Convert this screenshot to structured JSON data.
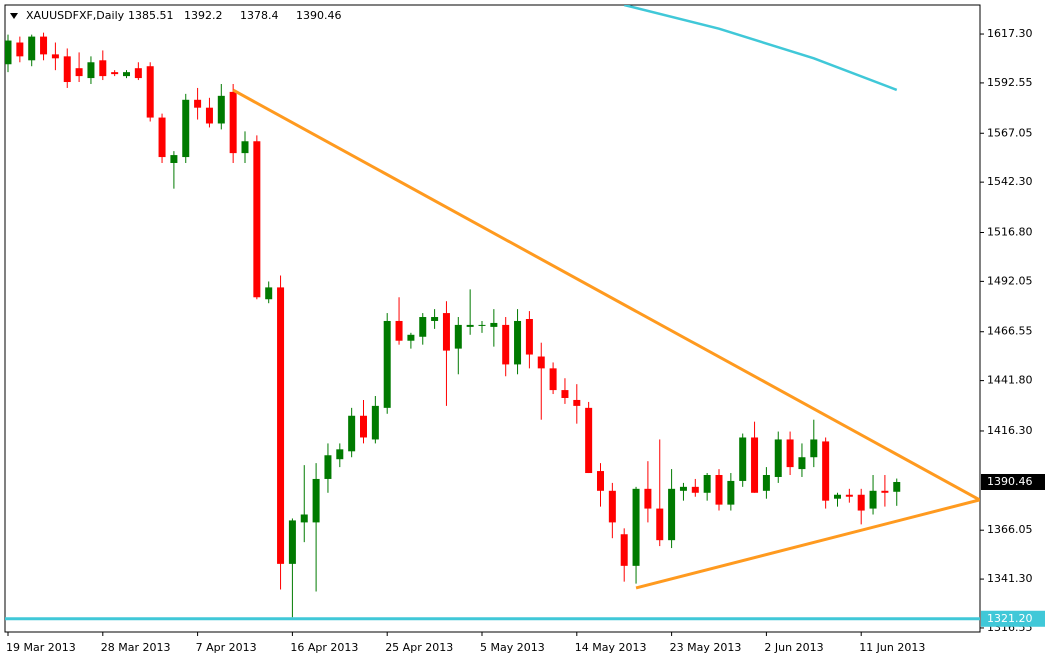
{
  "chart_data": {
    "type": "candlestick",
    "symbol": "XAUUSDFXF,Daily",
    "categories": [
      "19 Mar 2013",
      null,
      null,
      null,
      null,
      null,
      null,
      null,
      "28 Mar 2013",
      null,
      null,
      null,
      null,
      null,
      null,
      null,
      "7 Apr 2013",
      null,
      null,
      null,
      null,
      null,
      null,
      null,
      "16 Apr 2013",
      null,
      null,
      null,
      null,
      null,
      null,
      null,
      "25 Apr 2013",
      null,
      null,
      null,
      null,
      null,
      null,
      null,
      "5 May 2013",
      null,
      null,
      null,
      null,
      null,
      null,
      null,
      "14 May 2013",
      null,
      null,
      null,
      null,
      null,
      null,
      null,
      "23 May 2013",
      null,
      null,
      null,
      null,
      null,
      null,
      null,
      "2 Jun 2013",
      null,
      null,
      null,
      null,
      null,
      null,
      null,
      "11 Jun 2013",
      null,
      null,
      null
    ],
    "open": [
      1602,
      1613,
      1604,
      1616,
      1607,
      1606,
      1600,
      1595,
      1604,
      1598,
      1596,
      1600,
      1601,
      1575,
      1552,
      1555,
      1584,
      1580,
      1572,
      1588,
      1557,
      1563,
      1483,
      1489,
      1349,
      1370,
      1370,
      1392,
      1402,
      1406,
      1424,
      1412,
      1428,
      1472,
      1462,
      1464,
      1472,
      1476,
      1458,
      1469,
      1470,
      1469,
      1470,
      1450,
      1473,
      1454,
      1448,
      1437,
      1432,
      1428,
      1396,
      1386,
      1364,
      1348,
      1387,
      1377,
      1361,
      1386,
      1388,
      1385,
      1394,
      1379,
      1391,
      1413,
      1386,
      1393,
      1412,
      1397,
      1403,
      1411,
      1382,
      1384,
      1384,
      1377,
      1386,
      1385.51
    ],
    "high": [
      1617,
      1616,
      1617,
      1618,
      1613,
      1610,
      1608,
      1606,
      1609,
      1599,
      1599,
      1603,
      1603,
      1577,
      1558,
      1587,
      1590,
      1585,
      1592,
      1592,
      1568,
      1566,
      1492,
      1495,
      1372,
      1399,
      1400,
      1410,
      1410,
      1428,
      1432,
      1434,
      1476,
      1484,
      1466,
      1476,
      1478,
      1482,
      1474,
      1488,
      1472,
      1478,
      1474,
      1478,
      1477,
      1461,
      1451,
      1443,
      1440,
      1431,
      1400,
      1390,
      1367,
      1388,
      1401,
      1412,
      1397,
      1390,
      1392,
      1395,
      1397,
      1395,
      1415,
      1421,
      1398,
      1416,
      1416,
      1410,
      1422,
      1413,
      1385,
      1387,
      1387,
      1394,
      1394,
      1392.2
    ],
    "low": [
      1598,
      1603,
      1601,
      1604,
      1599,
      1590,
      1593,
      1592,
      1594,
      1596,
      1595,
      1594,
      1573,
      1552,
      1539,
      1552,
      1574,
      1570,
      1569,
      1552,
      1552,
      1483,
      1481,
      1336,
      1322,
      1360,
      1335,
      1385,
      1398,
      1403,
      1410,
      1410,
      1425,
      1460,
      1458,
      1460,
      1468,
      1429,
      1445,
      1465,
      1466,
      1459,
      1444,
      1445,
      1448,
      1422,
      1435,
      1430,
      1420,
      1395,
      1378,
      1362,
      1340,
      1339,
      1370,
      1358,
      1357,
      1381,
      1383,
      1381,
      1376,
      1376,
      1388,
      1385,
      1382,
      1390,
      1394,
      1393,
      1398,
      1377,
      1378,
      1380,
      1369,
      1374,
      1378,
      1378.4
    ],
    "close": [
      1614,
      1606,
      1616,
      1607,
      1605,
      1593,
      1596,
      1603,
      1596,
      1597,
      1598,
      1595,
      1575,
      1555,
      1556,
      1584,
      1580,
      1572,
      1586,
      1557,
      1563,
      1484,
      1489,
      1349,
      1371,
      1374,
      1392,
      1404,
      1407,
      1424,
      1413,
      1429,
      1472,
      1462,
      1465,
      1474,
      1474,
      1457,
      1470,
      1470,
      1470,
      1471,
      1450,
      1472,
      1455,
      1448,
      1437,
      1433,
      1429,
      1395,
      1386,
      1370,
      1348,
      1387,
      1377,
      1361,
      1387,
      1388,
      1385,
      1394,
      1379,
      1391,
      1413,
      1385,
      1394,
      1412,
      1398,
      1403,
      1412,
      1381,
      1384,
      1383,
      1376,
      1386,
      1385,
      1390.46
    ],
    "up_color": "#007a00",
    "down_color": "#ff0000",
    "ylim": [
      1314.5,
      1632.0
    ],
    "yticks": [
      {
        "value": 1617.3,
        "label": "1617.30"
      },
      1592.55,
      1567.05,
      {
        "value": 1542.3,
        "label": "1542.30"
      },
      {
        "value": 1516.8,
        "label": "1516.80"
      },
      1492.05,
      1466.55,
      {
        "value": 1441.8,
        "label": "1441.80"
      },
      {
        "value": 1416.3,
        "label": "1416.30"
      },
      1366.05,
      {
        "value": 1341.3,
        "label": "1341.30"
      },
      1316.55
    ],
    "hline": {
      "value": 1321.2,
      "label": "1321.20",
      "color": "#40c8d8"
    },
    "lines": [
      {
        "color": "#ff9a1f",
        "x": [
          19,
          82
        ],
        "y": [
          1588.9,
          1381.4
        ]
      },
      {
        "color": "#ff9a1f",
        "x": [
          53,
          82
        ],
        "y": [
          1336.8,
          1381.4
        ]
      },
      {
        "color": "#40c8d8",
        "x": [
          52,
          60,
          68,
          75
        ],
        "y": [
          1632,
          1620,
          1605,
          1589
        ]
      }
    ]
  }
}
